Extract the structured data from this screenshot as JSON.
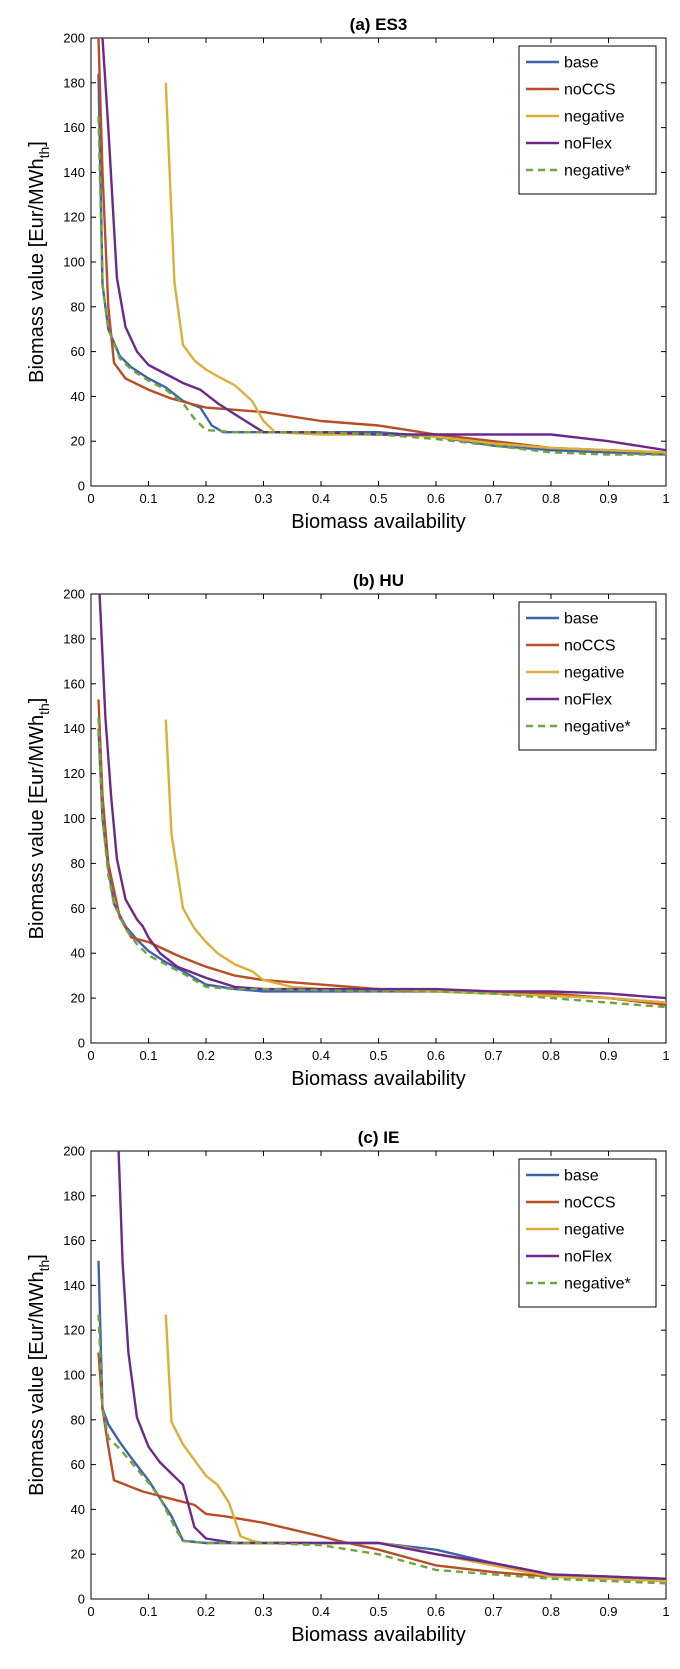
{
  "colors": {
    "base": "#3f62ad",
    "noCCS": "#b84d26",
    "negative": "#deae3a",
    "noFlex": "#6b2a8a",
    "negative*": "#6fa43f"
  },
  "chart_data": [
    {
      "type": "line",
      "title": "(a)  ES3",
      "xlabel": "Biomass availability",
      "ylabel": "Biomass value [Eur/MWh",
      "ylabel_sub": "th",
      "ylabel_end": "]",
      "xlim": [
        0,
        1
      ],
      "ylim": [
        0,
        200
      ],
      "xticks": [
        "0",
        "0.1",
        "0.2",
        "0.3",
        "0.4",
        "0.5",
        "0.6",
        "0.7",
        "0.8",
        "0.9",
        "1"
      ],
      "yticks": [
        "0",
        "20",
        "40",
        "60",
        "80",
        "100",
        "120",
        "140",
        "160",
        "180",
        "200"
      ],
      "grid": false,
      "legend_position": "top-right",
      "series": [
        {
          "name": "base",
          "x": [
            0.013,
            0.02,
            0.03,
            0.05,
            0.07,
            0.1,
            0.13,
            0.16,
            0.19,
            0.21,
            0.23,
            0.3,
            0.5,
            0.6,
            0.7,
            0.8,
            0.9,
            1.0
          ],
          "y": [
            184,
            90,
            70,
            58,
            53,
            48,
            44,
            38,
            35,
            27,
            24,
            24,
            24,
            22,
            18,
            16,
            15,
            14
          ]
        },
        {
          "name": "noCCS",
          "x": [
            0.013,
            0.02,
            0.03,
            0.04,
            0.06,
            0.1,
            0.14,
            0.2,
            0.25,
            0.3,
            0.35,
            0.4,
            0.5,
            0.6,
            0.7,
            0.8,
            0.9,
            1.0
          ],
          "y": [
            200,
            140,
            80,
            55,
            48,
            43,
            39,
            35,
            34,
            33,
            31,
            29,
            27,
            23,
            20,
            17,
            16,
            15
          ]
        },
        {
          "name": "negative",
          "x": [
            0.13,
            0.145,
            0.16,
            0.18,
            0.2,
            0.22,
            0.25,
            0.28,
            0.3,
            0.32,
            0.4,
            0.5,
            0.6,
            0.7,
            0.8,
            0.9,
            1.0
          ],
          "y": [
            180,
            91,
            63,
            56,
            52,
            49,
            45,
            38,
            29,
            24,
            23,
            23,
            22,
            19,
            17,
            16,
            15
          ]
        },
        {
          "name": "noFlex",
          "x": [
            0.02,
            0.03,
            0.045,
            0.06,
            0.08,
            0.1,
            0.13,
            0.16,
            0.19,
            0.22,
            0.25,
            0.3,
            0.4,
            0.5,
            0.6,
            0.7,
            0.8,
            0.9,
            1.0
          ],
          "y": [
            200,
            160,
            93,
            71,
            60,
            54,
            50,
            46,
            43,
            37,
            32,
            24,
            24,
            23,
            23,
            23,
            23,
            20,
            16
          ]
        },
        {
          "name": "negative*",
          "x": [
            0.013,
            0.02,
            0.03,
            0.05,
            0.07,
            0.1,
            0.13,
            0.16,
            0.18,
            0.2,
            0.25,
            0.3,
            0.4,
            0.5,
            0.6,
            0.7,
            0.8,
            0.9,
            1.0
          ],
          "y": [
            165,
            90,
            70,
            57,
            52,
            47,
            43,
            37,
            30,
            25,
            24,
            24,
            24,
            23,
            21,
            18,
            15,
            14,
            14
          ],
          "dashed": true
        }
      ]
    },
    {
      "type": "line",
      "title": "(b)  HU",
      "xlabel": "Biomass availability",
      "ylabel": "Biomass value [Eur/MWh",
      "ylabel_sub": "th",
      "ylabel_end": "]",
      "xlim": [
        0,
        1
      ],
      "ylim": [
        0,
        200
      ],
      "xticks": [
        "0",
        "0.1",
        "0.2",
        "0.3",
        "0.4",
        "0.5",
        "0.6",
        "0.7",
        "0.8",
        "0.9",
        "1"
      ],
      "yticks": [
        "0",
        "20",
        "40",
        "60",
        "80",
        "100",
        "120",
        "140",
        "160",
        "180",
        "200"
      ],
      "grid": false,
      "legend_position": "top-right",
      "series": [
        {
          "name": "base",
          "x": [
            0.013,
            0.02,
            0.03,
            0.04,
            0.06,
            0.08,
            0.1,
            0.13,
            0.16,
            0.2,
            0.25,
            0.3,
            0.5,
            0.6,
            0.7,
            0.8,
            0.9,
            1.0
          ],
          "y": [
            140,
            100,
            78,
            62,
            52,
            46,
            41,
            36,
            32,
            26,
            24,
            23,
            23,
            23,
            22,
            21,
            20,
            18
          ]
        },
        {
          "name": "noCCS",
          "x": [
            0.013,
            0.02,
            0.03,
            0.04,
            0.05,
            0.07,
            0.1,
            0.15,
            0.18,
            0.2,
            0.25,
            0.3,
            0.4,
            0.5,
            0.6,
            0.7,
            0.8,
            0.9,
            1.0
          ],
          "y": [
            153,
            110,
            80,
            68,
            56,
            47,
            45,
            39,
            36,
            34,
            30,
            28,
            26,
            24,
            23,
            23,
            22,
            20,
            17
          ]
        },
        {
          "name": "negative",
          "x": [
            0.13,
            0.14,
            0.16,
            0.18,
            0.2,
            0.22,
            0.25,
            0.28,
            0.3,
            0.35,
            0.4,
            0.5,
            0.6,
            0.7,
            0.8,
            0.9,
            1.0
          ],
          "y": [
            144,
            93,
            60,
            51,
            45,
            40,
            35,
            32,
            28,
            25,
            24,
            24,
            23,
            22,
            21,
            20,
            18
          ]
        },
        {
          "name": "noFlex",
          "x": [
            0.015,
            0.025,
            0.035,
            0.045,
            0.06,
            0.08,
            0.09,
            0.1,
            0.12,
            0.15,
            0.2,
            0.25,
            0.3,
            0.5,
            0.6,
            0.7,
            0.8,
            0.9,
            1.0
          ],
          "y": [
            200,
            145,
            110,
            82,
            64,
            55,
            52,
            47,
            40,
            34,
            29,
            25,
            24,
            24,
            24,
            23,
            23,
            22,
            20
          ]
        },
        {
          "name": "negative*",
          "x": [
            0.013,
            0.02,
            0.03,
            0.04,
            0.06,
            0.08,
            0.1,
            0.13,
            0.16,
            0.2,
            0.25,
            0.3,
            0.5,
            0.6,
            0.7,
            0.8,
            0.9,
            1.0
          ],
          "y": [
            145,
            100,
            75,
            62,
            51,
            44,
            39,
            35,
            31,
            25,
            24,
            24,
            23,
            23,
            22,
            20,
            18,
            16
          ],
          "dashed": true
        }
      ]
    },
    {
      "type": "line",
      "title": "(c)  IE",
      "xlabel": "Biomass availability",
      "ylabel": "Biomass value [Eur/MWh",
      "ylabel_sub": "th",
      "ylabel_end": "]",
      "xlim": [
        0,
        1
      ],
      "ylim": [
        0,
        200
      ],
      "xticks": [
        "0",
        "0.1",
        "0.2",
        "0.3",
        "0.4",
        "0.5",
        "0.6",
        "0.7",
        "0.8",
        "0.9",
        "1"
      ],
      "yticks": [
        "0",
        "20",
        "40",
        "60",
        "80",
        "100",
        "120",
        "140",
        "160",
        "180",
        "200"
      ],
      "grid": false,
      "legend_position": "top-right",
      "series": [
        {
          "name": "base",
          "x": [
            0.013,
            0.02,
            0.03,
            0.05,
            0.07,
            0.1,
            0.12,
            0.14,
            0.16,
            0.2,
            0.3,
            0.4,
            0.5,
            0.6,
            0.7,
            0.8,
            0.9,
            1.0
          ],
          "y": [
            151,
            85,
            78,
            70,
            63,
            53,
            45,
            37,
            26,
            25,
            25,
            25,
            25,
            22,
            16,
            11,
            10,
            9
          ]
        },
        {
          "name": "noCCS",
          "x": [
            0.013,
            0.02,
            0.03,
            0.04,
            0.06,
            0.09,
            0.12,
            0.15,
            0.18,
            0.2,
            0.23,
            0.3,
            0.35,
            0.4,
            0.43,
            0.5,
            0.6,
            0.7,
            0.8,
            0.9,
            1.0
          ],
          "y": [
            110,
            85,
            68,
            53,
            51,
            48,
            46,
            44,
            42,
            38,
            37,
            34,
            31,
            28,
            26,
            22,
            15,
            12,
            10,
            9,
            8
          ]
        },
        {
          "name": "negative",
          "x": [
            0.13,
            0.14,
            0.16,
            0.18,
            0.2,
            0.22,
            0.24,
            0.26,
            0.28,
            0.3,
            0.5,
            0.55,
            0.6,
            0.7,
            0.8,
            0.9,
            1.0
          ],
          "y": [
            127,
            79,
            69,
            62,
            55,
            51,
            43,
            28,
            26,
            25,
            25,
            23,
            20,
            15,
            10,
            9,
            8
          ]
        },
        {
          "name": "noFlex",
          "x": [
            0.048,
            0.055,
            0.065,
            0.08,
            0.1,
            0.12,
            0.14,
            0.16,
            0.18,
            0.2,
            0.25,
            0.3,
            0.4,
            0.5,
            0.6,
            0.7,
            0.8,
            0.9,
            1.0
          ],
          "y": [
            200,
            150,
            110,
            81,
            68,
            61,
            56,
            51,
            32,
            27,
            25,
            25,
            25,
            25,
            20,
            16,
            11,
            10,
            9
          ]
        },
        {
          "name": "negative*",
          "x": [
            0.013,
            0.02,
            0.03,
            0.05,
            0.07,
            0.1,
            0.12,
            0.14,
            0.15,
            0.16,
            0.2,
            0.3,
            0.4,
            0.5,
            0.6,
            0.7,
            0.8,
            0.9,
            1.0
          ],
          "y": [
            127,
            85,
            72,
            67,
            61,
            52,
            45,
            35,
            30,
            26,
            25,
            25,
            24,
            20,
            13,
            11,
            9,
            8,
            7
          ],
          "dashed": true
        }
      ]
    }
  ]
}
